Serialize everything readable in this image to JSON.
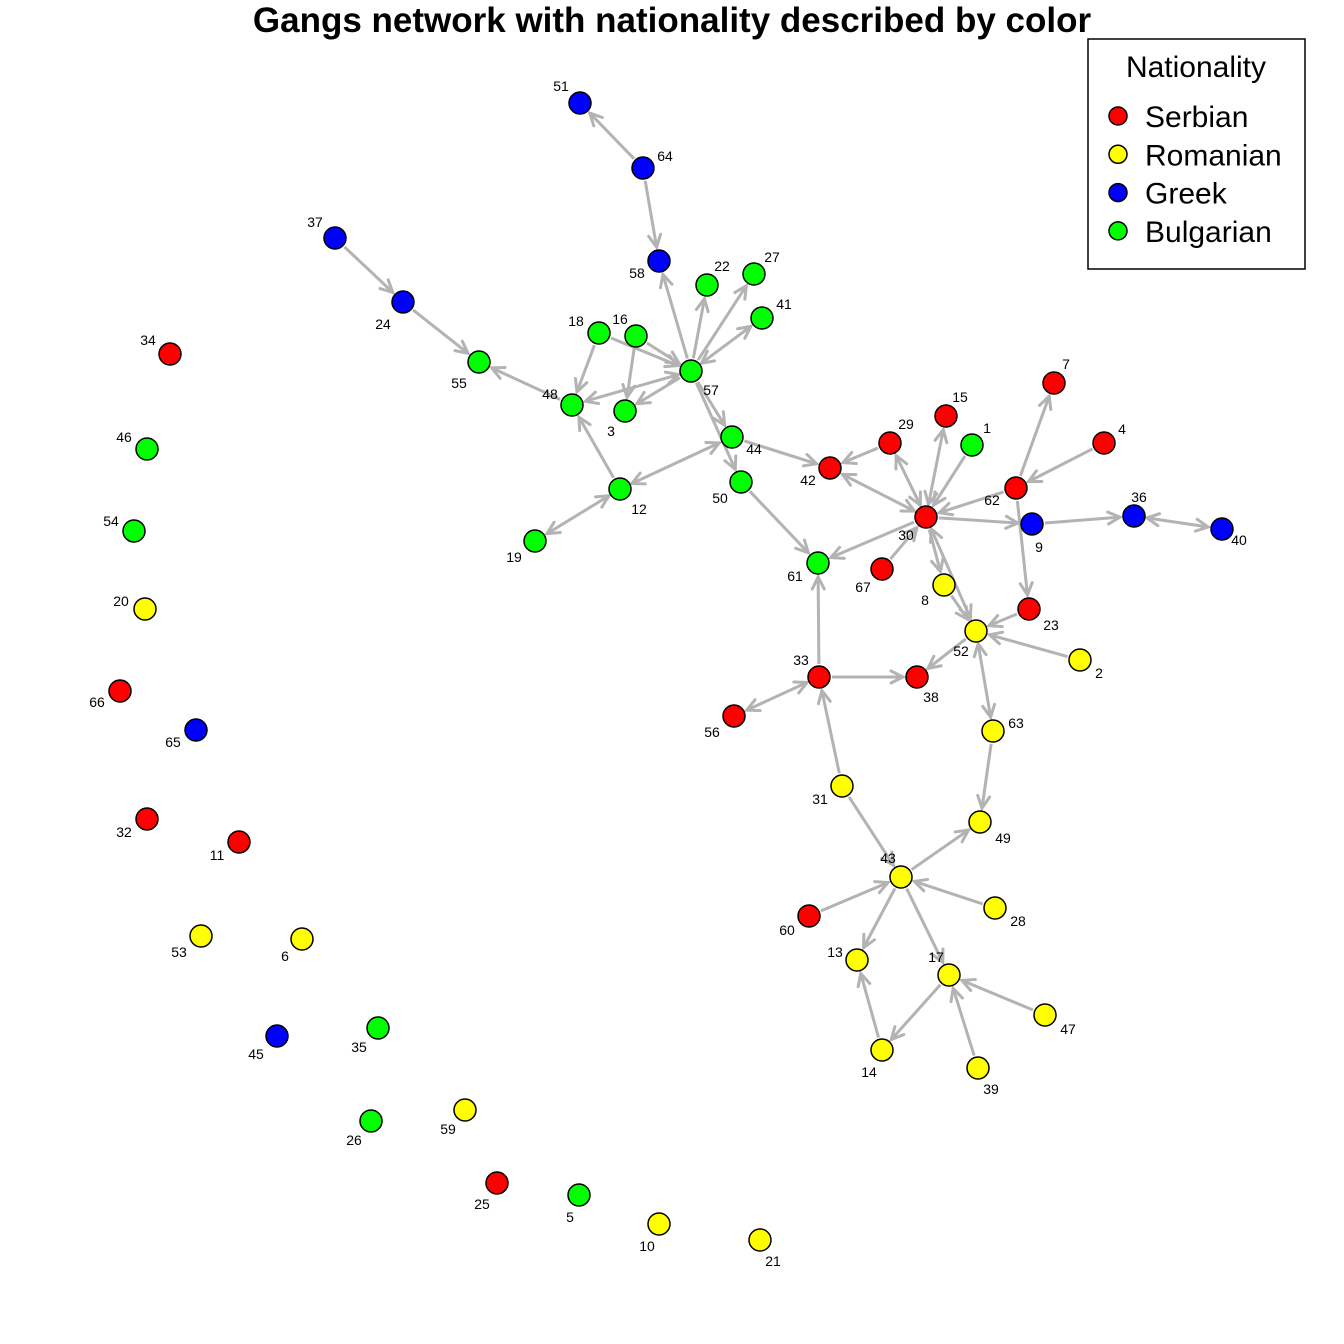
{
  "title": "Gangs network with nationality described by color",
  "legend": {
    "title": "Nationality",
    "items": [
      {
        "key": "serbian",
        "label": "Serbian",
        "color": "#FF0000"
      },
      {
        "key": "romanian",
        "label": "Romanian",
        "color": "#FFFF00"
      },
      {
        "key": "greek",
        "label": "Greek",
        "color": "#0000FF"
      },
      {
        "key": "bulgarian",
        "label": "Bulgarian",
        "color": "#00FF00"
      }
    ]
  },
  "edge_color": "#B3B3B3",
  "nodes": [
    {
      "id": "1",
      "nat": "bulgarian"
    },
    {
      "id": "2",
      "nat": "romanian"
    },
    {
      "id": "3",
      "nat": "bulgarian"
    },
    {
      "id": "4",
      "nat": "serbian"
    },
    {
      "id": "5",
      "nat": "bulgarian"
    },
    {
      "id": "6",
      "nat": "romanian"
    },
    {
      "id": "7",
      "nat": "serbian"
    },
    {
      "id": "8",
      "nat": "romanian"
    },
    {
      "id": "9",
      "nat": "greek"
    },
    {
      "id": "10",
      "nat": "romanian"
    },
    {
      "id": "11",
      "nat": "serbian"
    },
    {
      "id": "12",
      "nat": "bulgarian"
    },
    {
      "id": "13",
      "nat": "romanian"
    },
    {
      "id": "14",
      "nat": "romanian"
    },
    {
      "id": "15",
      "nat": "serbian"
    },
    {
      "id": "16",
      "nat": "bulgarian"
    },
    {
      "id": "17",
      "nat": "romanian"
    },
    {
      "id": "18",
      "nat": "bulgarian"
    },
    {
      "id": "19",
      "nat": "bulgarian"
    },
    {
      "id": "20",
      "nat": "romanian"
    },
    {
      "id": "21",
      "nat": "romanian"
    },
    {
      "id": "22",
      "nat": "bulgarian"
    },
    {
      "id": "23",
      "nat": "serbian"
    },
    {
      "id": "24",
      "nat": "greek"
    },
    {
      "id": "25",
      "nat": "serbian"
    },
    {
      "id": "26",
      "nat": "bulgarian"
    },
    {
      "id": "27",
      "nat": "bulgarian"
    },
    {
      "id": "28",
      "nat": "romanian"
    },
    {
      "id": "29",
      "nat": "serbian"
    },
    {
      "id": "30",
      "nat": "serbian"
    },
    {
      "id": "31",
      "nat": "romanian"
    },
    {
      "id": "32",
      "nat": "serbian"
    },
    {
      "id": "33",
      "nat": "serbian"
    },
    {
      "id": "34",
      "nat": "serbian"
    },
    {
      "id": "35",
      "nat": "bulgarian"
    },
    {
      "id": "36",
      "nat": "greek"
    },
    {
      "id": "37",
      "nat": "greek"
    },
    {
      "id": "38",
      "nat": "serbian"
    },
    {
      "id": "39",
      "nat": "romanian"
    },
    {
      "id": "40",
      "nat": "greek"
    },
    {
      "id": "41",
      "nat": "bulgarian"
    },
    {
      "id": "42",
      "nat": "serbian"
    },
    {
      "id": "43",
      "nat": "romanian"
    },
    {
      "id": "44",
      "nat": "bulgarian"
    },
    {
      "id": "45",
      "nat": "greek"
    },
    {
      "id": "46",
      "nat": "bulgarian"
    },
    {
      "id": "47",
      "nat": "romanian"
    },
    {
      "id": "48",
      "nat": "bulgarian"
    },
    {
      "id": "49",
      "nat": "romanian"
    },
    {
      "id": "50",
      "nat": "bulgarian"
    },
    {
      "id": "51",
      "nat": "greek"
    },
    {
      "id": "52",
      "nat": "romanian"
    },
    {
      "id": "53",
      "nat": "romanian"
    },
    {
      "id": "54",
      "nat": "bulgarian"
    },
    {
      "id": "55",
      "nat": "bulgarian"
    },
    {
      "id": "56",
      "nat": "serbian"
    },
    {
      "id": "57",
      "nat": "bulgarian"
    },
    {
      "id": "58",
      "nat": "greek"
    },
    {
      "id": "59",
      "nat": "romanian"
    },
    {
      "id": "60",
      "nat": "serbian"
    },
    {
      "id": "61",
      "nat": "bulgarian"
    },
    {
      "id": "62",
      "nat": "serbian"
    },
    {
      "id": "63",
      "nat": "romanian"
    },
    {
      "id": "64",
      "nat": "greek"
    },
    {
      "id": "65",
      "nat": "greek"
    },
    {
      "id": "66",
      "nat": "serbian"
    },
    {
      "id": "67",
      "nat": "serbian"
    }
  ],
  "edges": [
    {
      "from": "64",
      "to": "51",
      "bi": false
    },
    {
      "from": "64",
      "to": "58",
      "bi": false
    },
    {
      "from": "37",
      "to": "24",
      "bi": false
    },
    {
      "from": "24",
      "to": "55",
      "bi": false
    },
    {
      "from": "57",
      "to": "58",
      "bi": false
    },
    {
      "from": "57",
      "to": "22",
      "bi": false
    },
    {
      "from": "57",
      "to": "27",
      "bi": false
    },
    {
      "from": "57",
      "to": "41",
      "bi": true
    },
    {
      "from": "57",
      "to": "48",
      "bi": true
    },
    {
      "from": "57",
      "to": "3",
      "bi": false
    },
    {
      "from": "57",
      "to": "44",
      "bi": false
    },
    {
      "from": "57",
      "to": "50",
      "bi": false
    },
    {
      "from": "18",
      "to": "57",
      "bi": false
    },
    {
      "from": "16",
      "to": "57",
      "bi": false
    },
    {
      "from": "16",
      "to": "3",
      "bi": false
    },
    {
      "from": "48",
      "to": "55",
      "bi": false
    },
    {
      "from": "18",
      "to": "48",
      "bi": false
    },
    {
      "from": "12",
      "to": "48",
      "bi": false
    },
    {
      "from": "12",
      "to": "44",
      "bi": true
    },
    {
      "from": "12",
      "to": "19",
      "bi": true
    },
    {
      "from": "44",
      "to": "42",
      "bi": false
    },
    {
      "from": "50",
      "to": "61",
      "bi": false
    },
    {
      "from": "29",
      "to": "42",
      "bi": false
    },
    {
      "from": "30",
      "to": "42",
      "bi": true
    },
    {
      "from": "30",
      "to": "29",
      "bi": true
    },
    {
      "from": "30",
      "to": "15",
      "bi": true
    },
    {
      "from": "1",
      "to": "30",
      "bi": false
    },
    {
      "from": "67",
      "to": "30",
      "bi": false
    },
    {
      "from": "30",
      "to": "61",
      "bi": false
    },
    {
      "from": "30",
      "to": "9",
      "bi": false
    },
    {
      "from": "30",
      "to": "8",
      "bi": false
    },
    {
      "from": "30",
      "to": "52",
      "bi": true
    },
    {
      "from": "62",
      "to": "30",
      "bi": false
    },
    {
      "from": "62",
      "to": "7",
      "bi": false
    },
    {
      "from": "4",
      "to": "62",
      "bi": false
    },
    {
      "from": "62",
      "to": "23",
      "bi": false
    },
    {
      "from": "9",
      "to": "36",
      "bi": false
    },
    {
      "from": "36",
      "to": "40",
      "bi": true
    },
    {
      "from": "8",
      "to": "52",
      "bi": false
    },
    {
      "from": "23",
      "to": "52",
      "bi": false
    },
    {
      "from": "2",
      "to": "52",
      "bi": false
    },
    {
      "from": "52",
      "to": "38",
      "bi": false
    },
    {
      "from": "52",
      "to": "63",
      "bi": true
    },
    {
      "from": "63",
      "to": "49",
      "bi": false
    },
    {
      "from": "33",
      "to": "61",
      "bi": false
    },
    {
      "from": "33",
      "to": "38",
      "bi": false
    },
    {
      "from": "33",
      "to": "56",
      "bi": true
    },
    {
      "from": "31",
      "to": "33",
      "bi": false
    },
    {
      "from": "31",
      "to": "43",
      "bi": false
    },
    {
      "from": "43",
      "to": "49",
      "bi": false
    },
    {
      "from": "60",
      "to": "43",
      "bi": false
    },
    {
      "from": "28",
      "to": "43",
      "bi": false
    },
    {
      "from": "43",
      "to": "13",
      "bi": false
    },
    {
      "from": "43",
      "to": "17",
      "bi": false
    },
    {
      "from": "14",
      "to": "13",
      "bi": false
    },
    {
      "from": "17",
      "to": "14",
      "bi": false
    },
    {
      "from": "47",
      "to": "17",
      "bi": false
    },
    {
      "from": "39",
      "to": "17",
      "bi": false
    }
  ]
}
